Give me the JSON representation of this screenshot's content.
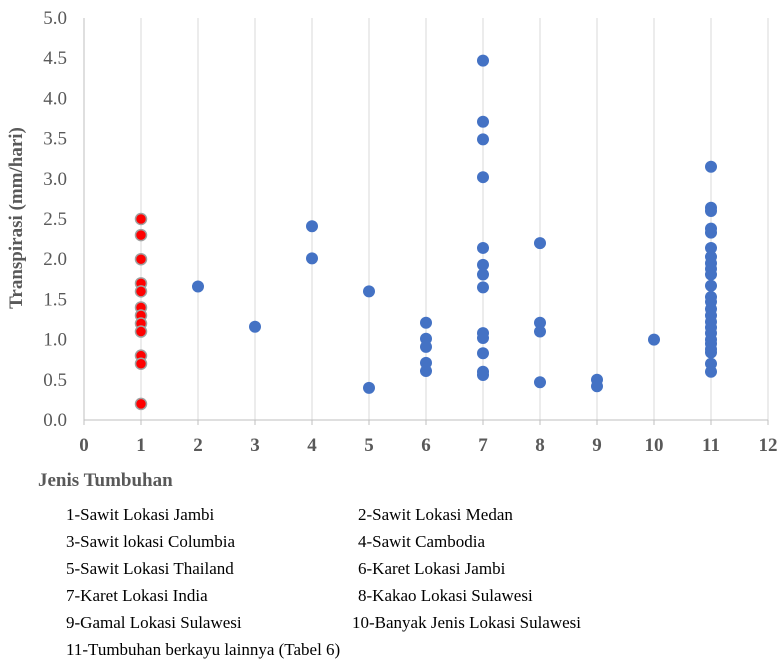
{
  "chart_data": {
    "type": "scatter",
    "ylabel": "Transpirasi (mm/hari)",
    "xlabel": "Jenis Tumbuhan",
    "xlim": [
      0,
      12
    ],
    "ylim": [
      0,
      5
    ],
    "x_ticks": [
      0,
      1,
      2,
      3,
      4,
      5,
      6,
      7,
      8,
      9,
      10,
      11,
      12
    ],
    "y_ticks": [
      0.0,
      0.5,
      1.0,
      1.5,
      2.0,
      2.5,
      3.0,
      3.5,
      4.0,
      4.5,
      5.0
    ],
    "y_tick_labels": [
      "0.0",
      "0.5",
      "1.0",
      "1.5",
      "2.0",
      "2.5",
      "3.0",
      "3.5",
      "4.0",
      "4.5",
      "5.0"
    ],
    "grid": "vertical",
    "series": [
      {
        "color": "#ff0000",
        "edge_color": "#a0a0a0",
        "points": [
          [
            1,
            2.5
          ],
          [
            1,
            2.3
          ],
          [
            1,
            2.0
          ],
          [
            1,
            1.7
          ],
          [
            1,
            1.6
          ],
          [
            1,
            1.4
          ],
          [
            1,
            1.3
          ],
          [
            1,
            1.2
          ],
          [
            1,
            1.1
          ],
          [
            1,
            0.8
          ],
          [
            1,
            0.7
          ],
          [
            1,
            0.2
          ]
        ]
      },
      {
        "color": "#4472c4",
        "points": [
          [
            2,
            1.66
          ],
          [
            3,
            1.16
          ],
          [
            4,
            2.41
          ],
          [
            4,
            2.01
          ],
          [
            5,
            1.6
          ],
          [
            5,
            0.4
          ],
          [
            6,
            1.21
          ],
          [
            6,
            1.01
          ],
          [
            6,
            0.91
          ],
          [
            6,
            0.71
          ],
          [
            6,
            0.61
          ],
          [
            7,
            4.47
          ],
          [
            7,
            3.71
          ],
          [
            7,
            3.49
          ],
          [
            7,
            3.02
          ],
          [
            7,
            2.14
          ],
          [
            7,
            1.93
          ],
          [
            7,
            1.81
          ],
          [
            7,
            1.65
          ],
          [
            7,
            1.08
          ],
          [
            7,
            1.02
          ],
          [
            7,
            0.83
          ],
          [
            7,
            0.6
          ],
          [
            7,
            0.56
          ],
          [
            8,
            2.2
          ],
          [
            8,
            1.21
          ],
          [
            8,
            1.1
          ],
          [
            8,
            0.47
          ],
          [
            9,
            0.5
          ],
          [
            9,
            0.42
          ],
          [
            10,
            1.0
          ],
          [
            11,
            3.15
          ],
          [
            11,
            2.64
          ],
          [
            11,
            2.6
          ],
          [
            11,
            2.38
          ],
          [
            11,
            2.33
          ],
          [
            11,
            2.14
          ],
          [
            11,
            2.03
          ],
          [
            11,
            1.95
          ],
          [
            11,
            1.88
          ],
          [
            11,
            1.81
          ],
          [
            11,
            1.67
          ],
          [
            11,
            1.53
          ],
          [
            11,
            1.47
          ],
          [
            11,
            1.38
          ],
          [
            11,
            1.3
          ],
          [
            11,
            1.22
          ],
          [
            11,
            1.15
          ],
          [
            11,
            1.08
          ],
          [
            11,
            1.0
          ],
          [
            11,
            0.95
          ],
          [
            11,
            0.88
          ],
          [
            11,
            0.84
          ],
          [
            11,
            0.7
          ],
          [
            11,
            0.6
          ]
        ]
      }
    ]
  },
  "legend": {
    "rows": [
      {
        "left": "1-Sawit Lokasi Jambi",
        "right": "2-Sawit Lokasi Medan"
      },
      {
        "left": "3-Sawit lokasi Columbia",
        "right": "4-Sawit Cambodia"
      },
      {
        "left": "5-Sawit Lokasi Thailand",
        "right": "6-Karet Lokasi Jambi"
      },
      {
        "left": "7-Karet Lokasi India",
        "right": "8-Kakao Lokasi Sulawesi"
      },
      {
        "left": "9-Gamal Lokasi Sulawesi",
        "right": "10-Banyak Jenis Lokasi Sulawesi"
      },
      {
        "left": "11-Tumbuhan berkayu lainnya (Tabel 6)",
        "right": ""
      }
    ]
  }
}
